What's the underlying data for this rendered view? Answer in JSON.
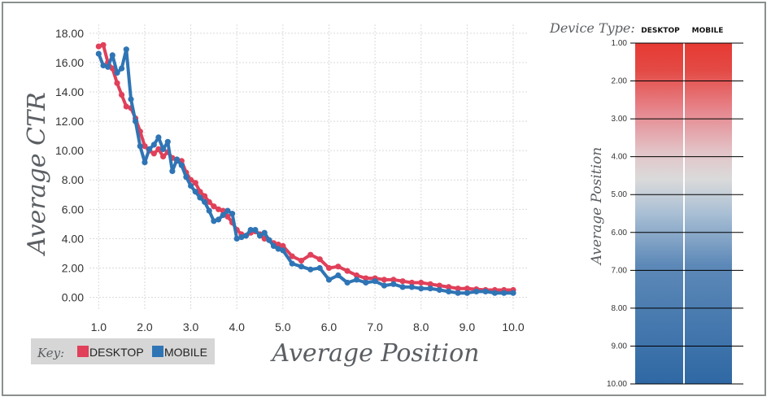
{
  "chart_data": [
    {
      "type": "line",
      "title": "",
      "xlabel": "Average Position",
      "ylabel": "Average CTR",
      "xlim": [
        0.8,
        10.3
      ],
      "ylim": [
        -0.8,
        18.6
      ],
      "grid": true,
      "x_ticks": [
        "1.0",
        "2.0",
        "3.0",
        "4.0",
        "5.0",
        "6.0",
        "7.0",
        "8.0",
        "9.0",
        "10.0"
      ],
      "y_ticks": [
        "0.00",
        "2.00",
        "4.00",
        "6.00",
        "8.00",
        "10.00",
        "12.00",
        "14.00",
        "16.00",
        "18.00"
      ],
      "legend": {
        "label": "Key:",
        "placement": "bottom-left",
        "entries": [
          {
            "name": "DESKTOP",
            "color": "#e0405a"
          },
          {
            "name": "MOBILE",
            "color": "#2f75b5"
          }
        ]
      },
      "series": [
        {
          "name": "DESKTOP",
          "color": "#e0405a",
          "x": [
            1.0,
            1.1,
            1.2,
            1.3,
            1.4,
            1.5,
            1.6,
            1.7,
            1.8,
            1.9,
            2.0,
            2.1,
            2.2,
            2.3,
            2.4,
            2.5,
            2.6,
            2.7,
            2.8,
            2.9,
            3.0,
            3.1,
            3.2,
            3.3,
            3.4,
            3.5,
            3.6,
            3.7,
            3.8,
            3.9,
            4.0,
            4.1,
            4.2,
            4.3,
            4.4,
            4.5,
            4.6,
            4.7,
            4.8,
            4.9,
            5.0,
            5.2,
            5.4,
            5.6,
            5.8,
            6.0,
            6.2,
            6.4,
            6.6,
            6.8,
            7.0,
            7.2,
            7.4,
            7.6,
            7.8,
            8.0,
            8.2,
            8.4,
            8.6,
            8.8,
            9.0,
            9.2,
            9.4,
            9.6,
            9.8,
            10.0
          ],
          "y": [
            17.1,
            17.2,
            16.0,
            15.6,
            14.6,
            13.8,
            13.0,
            12.9,
            12.2,
            11.3,
            10.3,
            10.0,
            9.8,
            10.1,
            9.6,
            9.9,
            9.5,
            9.3,
            9.3,
            8.5,
            8.0,
            7.8,
            7.2,
            6.9,
            6.5,
            6.2,
            6.0,
            5.9,
            5.5,
            5.1,
            4.6,
            4.3,
            4.2,
            4.4,
            4.5,
            4.3,
            4.0,
            3.9,
            3.7,
            3.6,
            3.5,
            2.8,
            2.5,
            2.9,
            2.6,
            2.0,
            2.1,
            1.8,
            1.5,
            1.3,
            1.3,
            1.2,
            1.2,
            1.1,
            1.0,
            1.0,
            0.9,
            0.8,
            0.7,
            0.6,
            0.6,
            0.55,
            0.5,
            0.5,
            0.5,
            0.5
          ]
        },
        {
          "name": "MOBILE",
          "color": "#2f75b5",
          "x": [
            1.0,
            1.1,
            1.2,
            1.3,
            1.4,
            1.5,
            1.6,
            1.7,
            1.8,
            1.9,
            2.0,
            2.1,
            2.2,
            2.3,
            2.4,
            2.5,
            2.6,
            2.7,
            2.8,
            2.9,
            3.0,
            3.1,
            3.2,
            3.3,
            3.4,
            3.5,
            3.6,
            3.7,
            3.8,
            3.9,
            4.0,
            4.1,
            4.2,
            4.3,
            4.4,
            4.5,
            4.6,
            4.7,
            4.8,
            4.9,
            5.0,
            5.2,
            5.4,
            5.6,
            5.8,
            6.0,
            6.2,
            6.4,
            6.6,
            6.8,
            7.0,
            7.2,
            7.4,
            7.6,
            7.8,
            8.0,
            8.2,
            8.4,
            8.6,
            8.8,
            9.0,
            9.2,
            9.4,
            9.6,
            9.8,
            10.0
          ],
          "y": [
            16.6,
            15.8,
            15.7,
            16.5,
            15.3,
            15.6,
            16.9,
            13.5,
            12.0,
            10.3,
            9.2,
            10.1,
            10.4,
            10.9,
            10.1,
            10.6,
            8.6,
            9.4,
            9.0,
            8.2,
            7.6,
            7.2,
            6.8,
            6.5,
            5.9,
            5.2,
            5.3,
            5.6,
            5.9,
            5.7,
            4.0,
            4.1,
            4.2,
            4.6,
            4.6,
            4.2,
            4.4,
            3.9,
            3.5,
            3.3,
            3.2,
            2.3,
            2.1,
            1.9,
            2.0,
            1.2,
            1.5,
            1.0,
            1.2,
            1.0,
            1.1,
            0.8,
            0.9,
            0.7,
            0.7,
            0.6,
            0.6,
            0.5,
            0.4,
            0.3,
            0.3,
            0.4,
            0.4,
            0.3,
            0.3,
            0.3
          ]
        }
      ]
    },
    {
      "type": "heatmap",
      "title": "Device Type:",
      "ylabel": "Average Position",
      "ylim": [
        1.0,
        10.0
      ],
      "y_ticks": [
        "1.00",
        "2.00",
        "3.00",
        "4.00",
        "5.00",
        "6.00",
        "7.00",
        "8.00",
        "9.00",
        "10.00"
      ],
      "columns": [
        "DESKTOP",
        "MOBILE"
      ],
      "color_scale": {
        "high": "#e63a33",
        "mid": "#dcdcdc",
        "low": "#2f68a4"
      }
    }
  ]
}
